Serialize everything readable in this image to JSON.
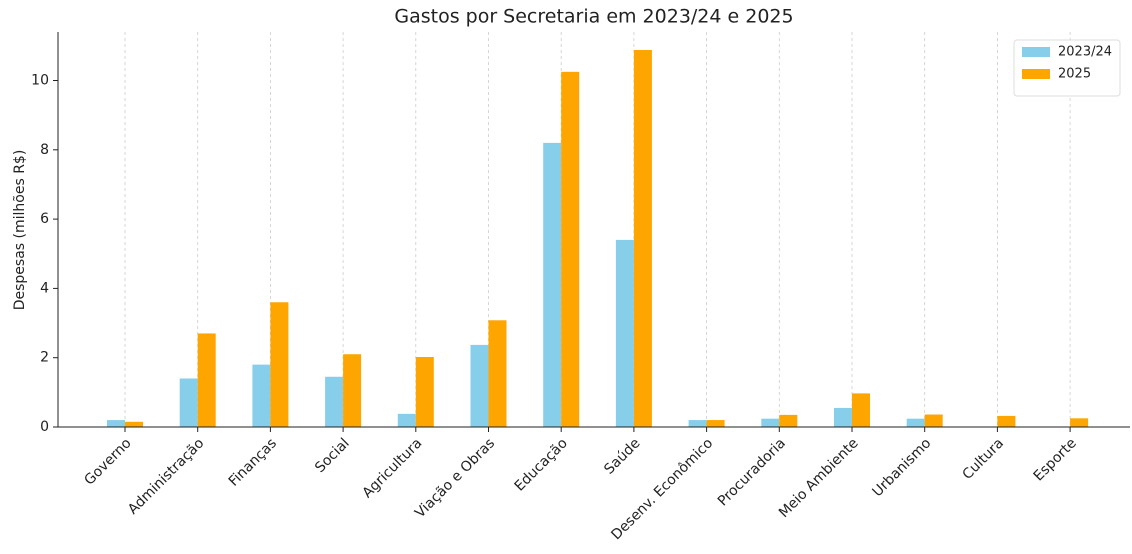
{
  "chart_data": {
    "type": "bar",
    "title": "Gastos por Secretaria em 2023/24 e 2025",
    "y_label": "Despesas (milhões R$)",
    "categories": [
      "Governo",
      "Administração",
      "Finanças",
      "Social",
      "Agricultura",
      "Viação e Obras",
      "Educação",
      "Saúde",
      "Desenv. Econômico",
      "Procuradoria",
      "Meio Ambiente",
      "Urbanismo",
      "Cultura",
      "Esporte"
    ],
    "series": [
      {
        "name": "2023/24",
        "color": "#87ceeb",
        "values": [
          0.2,
          1.4,
          1.8,
          1.45,
          0.38,
          2.37,
          8.2,
          5.4,
          0.2,
          0.24,
          0.55,
          0.24,
          null,
          null
        ]
      },
      {
        "name": "2025",
        "color": "#ffa500",
        "values": [
          0.15,
          2.7,
          3.6,
          2.1,
          2.02,
          3.08,
          10.25,
          10.88,
          0.2,
          0.35,
          0.97,
          0.36,
          0.32,
          0.25
        ]
      }
    ],
    "ylim": [
      0,
      11.4
    ],
    "yticks": [
      0,
      2,
      4,
      6,
      8,
      10
    ],
    "grid": "x",
    "legend": "upper right"
  }
}
